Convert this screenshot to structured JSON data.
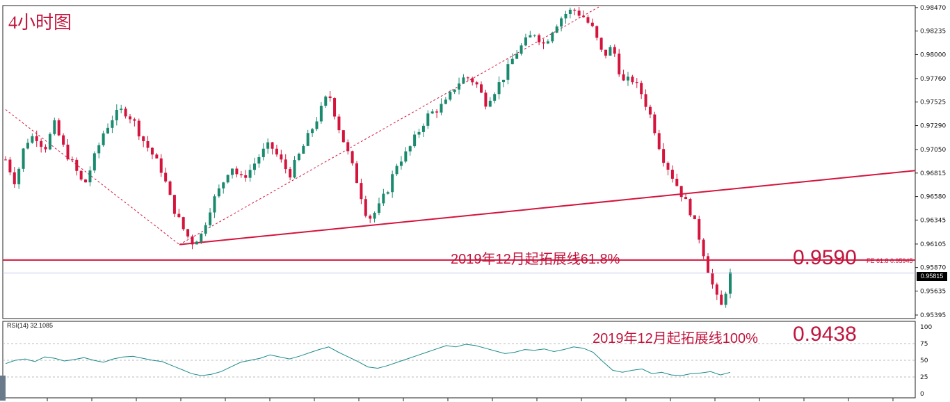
{
  "chart_data": {
    "type": "candlestick",
    "title": "4小时图",
    "price_axis": {
      "ticks": [
        "0.98470",
        "0.98235",
        "0.98000",
        "0.97760",
        "0.97525",
        "0.97290",
        "0.97050",
        "0.96815",
        "0.96580",
        "0.96345",
        "0.96105",
        "0.95870",
        "0.95635",
        "0.95395"
      ],
      "range": [
        0.9536,
        0.9849
      ]
    },
    "current_price": "0.95815",
    "annotations": [
      {
        "text": "2019年12月起拓展线61.8%"
      },
      {
        "text": "0.9590"
      },
      {
        "text": "FE 61.8  0.95945"
      },
      {
        "text": "2019年12月起拓展线100%"
      },
      {
        "text": "0.9438"
      }
    ],
    "levels": {
      "fe_61_8": 0.95945,
      "current": 0.95815
    },
    "trendline": {
      "from": 0.961,
      "to": 0.9684
    },
    "swing_points": [
      {
        "label": "high",
        "value": 0.9745
      },
      {
        "label": "low",
        "value": 0.961
      },
      {
        "label": "high",
        "value": 0.9765
      },
      {
        "label": "low",
        "value": 0.963
      },
      {
        "label": "high",
        "value": 0.9848
      },
      {
        "label": "low",
        "value": 0.9541
      }
    ],
    "close_path": [
      0.9695,
      0.9672,
      0.9712,
      0.972,
      0.9706,
      0.973,
      0.9705,
      0.9688,
      0.9668,
      0.9695,
      0.9722,
      0.9738,
      0.9745,
      0.9735,
      0.9715,
      0.97,
      0.9683,
      0.965,
      0.9628,
      0.9612,
      0.962,
      0.965,
      0.9668,
      0.969,
      0.9675,
      0.9685,
      0.97,
      0.971,
      0.9695,
      0.968,
      0.97,
      0.972,
      0.974,
      0.9762,
      0.9728,
      0.97,
      0.967,
      0.9635,
      0.9645,
      0.9665,
      0.9692,
      0.9702,
      0.972,
      0.9738,
      0.9745,
      0.9752,
      0.977,
      0.9778,
      0.9772,
      0.9752,
      0.9765,
      0.978,
      0.98,
      0.9812,
      0.9822,
      0.981,
      0.9828,
      0.984,
      0.9845,
      0.9838,
      0.9825,
      0.9798,
      0.9808,
      0.9772,
      0.9775,
      0.976,
      0.9735,
      0.97,
      0.968,
      0.9661,
      0.9642,
      0.9612,
      0.9575,
      0.9545,
      0.958
    ],
    "rsi": {
      "label": "RSI(14) 32.1085",
      "levels": [
        "100",
        "75",
        "50",
        "25",
        "0"
      ],
      "range": [
        0,
        100
      ],
      "values": [
        45,
        50,
        52,
        48,
        55,
        53,
        49,
        51,
        54,
        50,
        47,
        52,
        55,
        56,
        53,
        50,
        48,
        42,
        36,
        30,
        27,
        29,
        33,
        40,
        47,
        50,
        53,
        58,
        55,
        52,
        56,
        61,
        66,
        70,
        62,
        55,
        48,
        40,
        38,
        42,
        47,
        52,
        57,
        62,
        67,
        72,
        70,
        74,
        72,
        68,
        64,
        60,
        62,
        66,
        65,
        67,
        63,
        66,
        70,
        68,
        62,
        48,
        35,
        32,
        35,
        37,
        30,
        32,
        28,
        27,
        30,
        31,
        33,
        28,
        32
      ]
    }
  }
}
